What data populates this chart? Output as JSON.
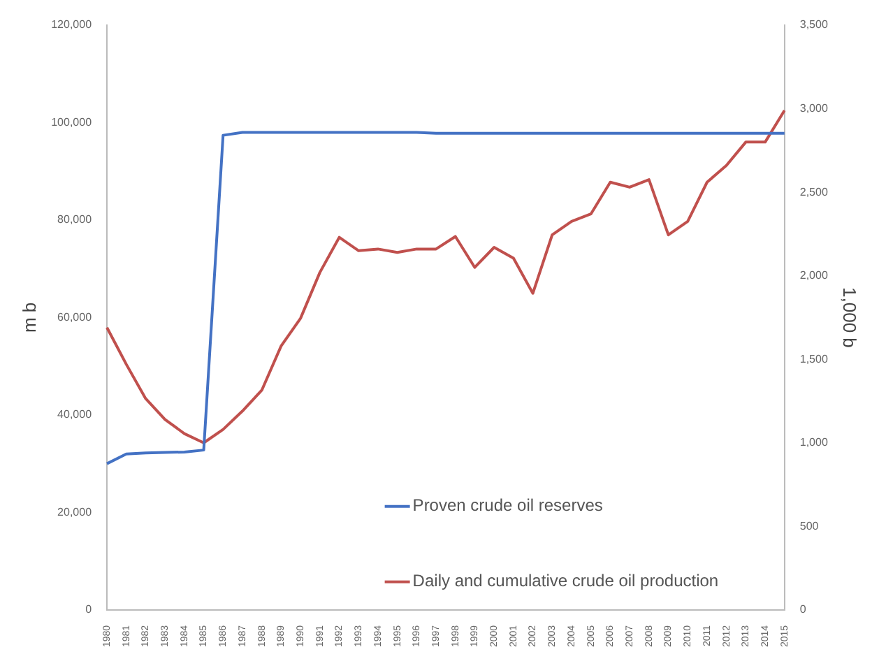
{
  "chart_data": {
    "type": "line",
    "categories": [
      "1980",
      "1981",
      "1982",
      "1983",
      "1984",
      "1985",
      "1986",
      "1987",
      "1988",
      "1989",
      "1990",
      "1991",
      "1992",
      "1993",
      "1994",
      "1995",
      "1996",
      "1997",
      "1998",
      "1999",
      "2000",
      "2001",
      "2002",
      "2003",
      "2004",
      "2005",
      "2006",
      "2007",
      "2008",
      "2009",
      "2010",
      "2011",
      "2012",
      "2013",
      "2014",
      "2015"
    ],
    "ylabel": "m b",
    "y2label": "1,000 b",
    "series": [
      {
        "name": "Proven crude oil reserves",
        "color": "#4472c4",
        "values": [
          30000,
          32000,
          32200,
          32300,
          32400,
          32800,
          97400,
          98000,
          98000,
          98000,
          98000,
          98000,
          98000,
          98000,
          98000,
          98000,
          98000,
          97800,
          97800,
          97800,
          97800,
          97800,
          97800,
          97800,
          97800,
          97800,
          97800,
          97800,
          97800,
          97800,
          97800,
          97800,
          97800,
          97800,
          97800,
          97800
        ]
      },
      {
        "name": "Daily and cumulative crude oil production",
        "color": "#c0504d",
        "axis": "y2",
        "values": [
          1690,
          1470,
          1265,
          1140,
          1055,
          1000,
          1080,
          1190,
          1315,
          1580,
          1745,
          2020,
          2230,
          2150,
          2160,
          2140,
          2160,
          2160,
          2235,
          2050,
          2170,
          2105,
          1895,
          2245,
          2325,
          2370,
          2560,
          2530,
          2575,
          2245,
          2325,
          2560,
          2660,
          2800,
          2800,
          2990
        ]
      }
    ],
    "ylim": [
      0,
      120000
    ],
    "yticks": [
      0,
      {
        "value": 20000,
        "label": "20,000"
      },
      {
        "value": 40000,
        "label": "40,000"
      },
      {
        "value": 60000,
        "label": "60,000"
      },
      {
        "value": 80000,
        "label": "80,000"
      },
      {
        "value": 100000,
        "label": "100,000"
      },
      {
        "value": 120000,
        "label": "120,000"
      }
    ],
    "y2lim": [
      0,
      3500
    ],
    "y2ticks": [
      0,
      500,
      {
        "value": 1000,
        "label": "1,000"
      },
      {
        "value": 1500,
        "label": "1,500"
      },
      {
        "value": 2000,
        "label": "2,000"
      },
      {
        "value": 2500,
        "label": "2,500"
      },
      {
        "value": 3000,
        "label": "3,000"
      },
      {
        "value": 3500,
        "label": "3,500"
      }
    ],
    "grid": false,
    "legend": "bottom",
    "marker": "none",
    "line_style": "solid"
  }
}
